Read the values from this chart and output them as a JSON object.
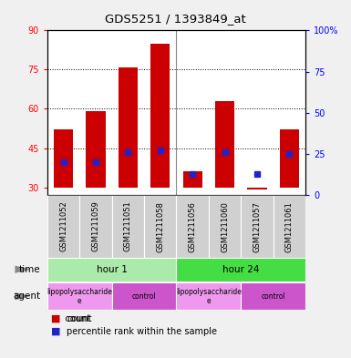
{
  "title": "GDS5251 / 1393849_at",
  "samples": [
    "GSM1211052",
    "GSM1211059",
    "GSM1211051",
    "GSM1211058",
    "GSM1211056",
    "GSM1211060",
    "GSM1211057",
    "GSM1211061"
  ],
  "counts": [
    52,
    59,
    76,
    85,
    36,
    63,
    30,
    52
  ],
  "count_bases": [
    30,
    30,
    30,
    30,
    30,
    30,
    29,
    30
  ],
  "percentiles": [
    20,
    20,
    26,
    27,
    13,
    26,
    13,
    25
  ],
  "ylim_left": [
    27,
    90
  ],
  "ylim_right": [
    0,
    100
  ],
  "left_ticks": [
    30,
    45,
    60,
    75,
    90
  ],
  "right_ticks": [
    0,
    25,
    50,
    75,
    100
  ],
  "bar_color": "#cc0000",
  "dot_color": "#2222cc",
  "time_groups": [
    {
      "label": "hour 1",
      "start": 0,
      "end": 4,
      "color": "#aaeaaa"
    },
    {
      "label": "hour 24",
      "start": 4,
      "end": 8,
      "color": "#44dd44"
    }
  ],
  "agent_groups": [
    {
      "label": "lipopolysaccharide\ne",
      "start": 0,
      "end": 2,
      "color": "#ee99ee"
    },
    {
      "label": "control",
      "start": 2,
      "end": 4,
      "color": "#cc55cc"
    },
    {
      "label": "lipopolysaccharide\ne",
      "start": 4,
      "end": 6,
      "color": "#ee99ee"
    },
    {
      "label": "control",
      "start": 6,
      "end": 8,
      "color": "#cc55cc"
    }
  ],
  "grid_dotted_values": [
    45,
    60,
    75
  ],
  "fig_bg": "#f0f0f0",
  "plot_bg": "#ffffff",
  "sample_bg": "#d0d0d0"
}
